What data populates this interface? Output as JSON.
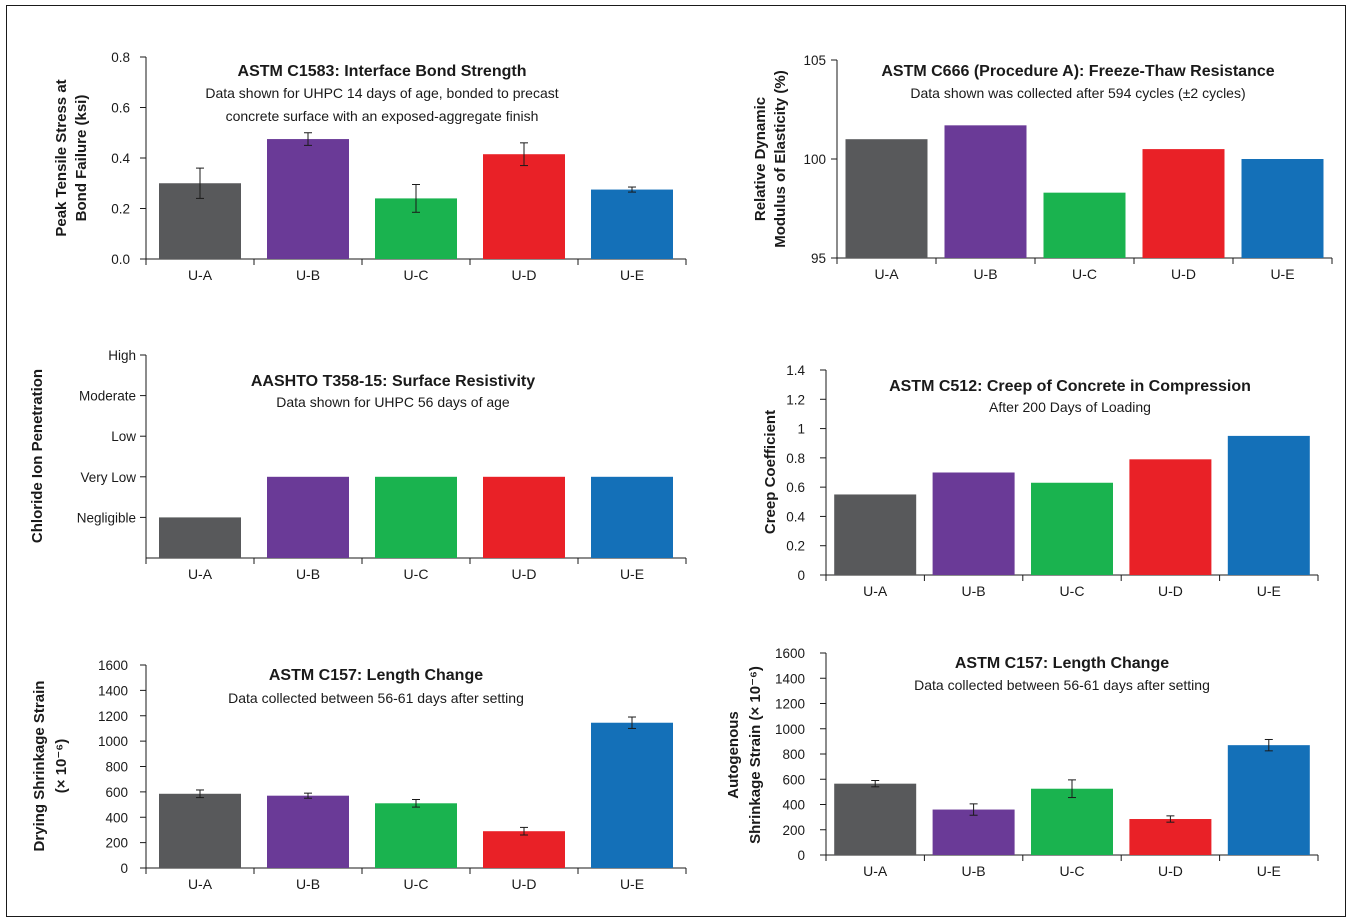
{
  "colors": [
    "#58595b",
    "#6a3a97",
    "#1ab34f",
    "#e92127",
    "#1470b8"
  ],
  "chart_data": [
    {
      "type": "bar",
      "title": "ASTM C1583: Interface Bond Strength",
      "subtitle": [
        "Data shown for UHPC 14 days of age, bonded to precast",
        "concrete surface with an exposed-aggregate finish"
      ],
      "ylabel": [
        "Peak Tensile Stress at",
        "Bond Failure (ksi)"
      ],
      "categories": [
        "U-A",
        "U-B",
        "U-C",
        "U-D",
        "U-E"
      ],
      "values": [
        0.3,
        0.475,
        0.24,
        0.415,
        0.275
      ],
      "errors": [
        0.06,
        0.025,
        0.055,
        0.045,
        0.01
      ],
      "ylim": [
        0,
        0.8
      ],
      "yticks": [
        0,
        0.2,
        0.4,
        0.6,
        0.8
      ],
      "yticklabels": [
        "0.0",
        "0.2",
        "0.4",
        "0.6",
        "0.8"
      ]
    },
    {
      "type": "bar",
      "title": "ASTM C666 (Procedure A): Freeze-Thaw Resistance",
      "subtitle": [
        "Data shown was collected after 594 cycles (±2 cycles)"
      ],
      "ylabel": [
        "Relative Dynamic",
        "Modulus of Elasticity (%)"
      ],
      "categories": [
        "U-A",
        "U-B",
        "U-C",
        "U-D",
        "U-E"
      ],
      "values": [
        101.0,
        101.7,
        98.3,
        100.5,
        100.0
      ],
      "ylim": [
        95,
        105
      ],
      "yticks": [
        95,
        100,
        105
      ],
      "yticklabels": [
        "95",
        "100",
        "105"
      ]
    },
    {
      "type": "bar",
      "title": "AASHTO T358-15: Surface Resistivity",
      "subtitle": [
        "Data shown for UHPC 56 days of age"
      ],
      "ylabel": [
        "Chloride Ion Penetration"
      ],
      "categories": [
        "U-A",
        "U-B",
        "U-C",
        "U-D",
        "U-E"
      ],
      "values": [
        1,
        2,
        2,
        2,
        2
      ],
      "ylim": [
        0,
        5
      ],
      "yticks": [
        1,
        2,
        3,
        4,
        5
      ],
      "yticklabels": [
        "Negligible",
        "Very Low",
        "Low",
        "Moderate",
        "High"
      ]
    },
    {
      "type": "bar",
      "title": "ASTM C512: Creep of Concrete in Compression",
      "subtitle": [
        "After 200 Days of Loading"
      ],
      "ylabel": [
        "Creep Coefficient"
      ],
      "categories": [
        "U-A",
        "U-B",
        "U-C",
        "U-D",
        "U-E"
      ],
      "values": [
        0.55,
        0.7,
        0.63,
        0.79,
        0.95
      ],
      "ylim": [
        0,
        1.4
      ],
      "yticks": [
        0,
        0.2,
        0.4,
        0.6,
        0.8,
        1.0,
        1.2,
        1.4
      ],
      "yticklabels": [
        "0",
        "0.2",
        "0.4",
        "0.6",
        "0.8",
        "1",
        "1.2",
        "1.4"
      ]
    },
    {
      "type": "bar",
      "title": "ASTM C157: Length Change",
      "subtitle": [
        "Data collected between 56-61 days after setting"
      ],
      "ylabel": [
        "Drying Shrinkage Strain",
        "(× 10⁻⁶)"
      ],
      "categories": [
        "U-A",
        "U-B",
        "U-C",
        "U-D",
        "U-E"
      ],
      "values": [
        585,
        570,
        510,
        290,
        1145
      ],
      "errors": [
        30,
        20,
        30,
        30,
        45
      ],
      "ylim": [
        0,
        1600
      ],
      "yticks": [
        0,
        200,
        400,
        600,
        800,
        1000,
        1200,
        1400,
        1600
      ],
      "yticklabels": [
        "0",
        "200",
        "400",
        "600",
        "800",
        "1000",
        "1200",
        "1400",
        "1600"
      ]
    },
    {
      "type": "bar",
      "title": "ASTM C157: Length Change",
      "subtitle": [
        "Data collected between 56-61 days after setting"
      ],
      "ylabel": [
        "Autogenous",
        "Shrinkage Strain (× 10⁻⁶)"
      ],
      "categories": [
        "U-A",
        "U-B",
        "U-C",
        "U-D",
        "U-E"
      ],
      "values": [
        565,
        360,
        525,
        285,
        870
      ],
      "errors": [
        25,
        45,
        70,
        25,
        45
      ],
      "ylim": [
        0,
        1600
      ],
      "yticks": [
        0,
        200,
        400,
        600,
        800,
        1000,
        1200,
        1400,
        1600
      ],
      "yticklabels": [
        "0",
        "200",
        "400",
        "600",
        "800",
        "1000",
        "1200",
        "1400",
        "1600"
      ]
    }
  ]
}
